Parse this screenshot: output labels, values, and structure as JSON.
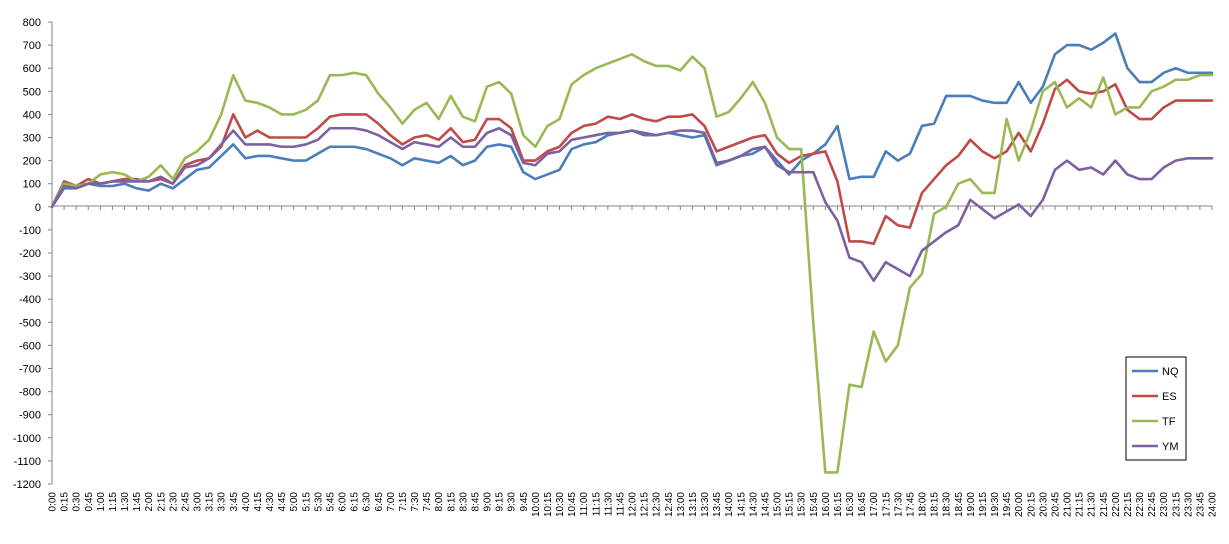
{
  "chart_data": {
    "type": "line",
    "title": "",
    "xlabel": "",
    "ylabel": "",
    "ylim": [
      -1200,
      800
    ],
    "ytick_step": 100,
    "grid": "off",
    "legend_position": "right",
    "x": [
      "0:00",
      "0:15",
      "0:30",
      "0:45",
      "1:00",
      "1:15",
      "1:30",
      "1:45",
      "2:00",
      "2:15",
      "2:30",
      "2:45",
      "3:00",
      "3:15",
      "3:30",
      "3:45",
      "4:00",
      "4:15",
      "4:30",
      "4:45",
      "5:00",
      "5:15",
      "5:30",
      "5:45",
      "6:00",
      "6:15",
      "6:30",
      "6:45",
      "7:00",
      "7:15",
      "7:30",
      "7:45",
      "8:00",
      "8:15",
      "8:30",
      "8:45",
      "9:00",
      "9:15",
      "9:30",
      "9:45",
      "10:00",
      "10:15",
      "10:30",
      "10:45",
      "11:00",
      "11:15",
      "11:30",
      "11:45",
      "12:00",
      "12:15",
      "12:30",
      "12:45",
      "13:00",
      "13:15",
      "13:30",
      "13:45",
      "14:00",
      "14:15",
      "14:30",
      "14:45",
      "15:00",
      "15:15",
      "15:30",
      "15:45",
      "16:00",
      "16:15",
      "16:30",
      "16:45",
      "17:00",
      "17:15",
      "17:30",
      "17:45",
      "18:00",
      "18:15",
      "18:30",
      "18:45",
      "19:00",
      "19:15",
      "19:30",
      "19:45",
      "20:00",
      "20:15",
      "20:30",
      "20:45",
      "21:00",
      "21:15",
      "21:30",
      "21:45",
      "22:00",
      "22:15",
      "22:30",
      "22:45",
      "23:00",
      "23:15",
      "23:30",
      "23:45",
      "24:00"
    ],
    "series": [
      {
        "name": "NQ",
        "color": "#4a7ebb",
        "values": [
          0,
          80,
          80,
          100,
          90,
          90,
          100,
          80,
          70,
          100,
          80,
          120,
          160,
          170,
          220,
          270,
          210,
          220,
          220,
          210,
          200,
          200,
          230,
          260,
          260,
          260,
          250,
          230,
          210,
          180,
          210,
          200,
          190,
          220,
          180,
          200,
          260,
          270,
          260,
          150,
          120,
          140,
          160,
          250,
          270,
          280,
          310,
          320,
          330,
          310,
          310,
          320,
          310,
          300,
          310,
          180,
          200,
          220,
          230,
          260,
          200,
          140,
          200,
          230,
          270,
          350,
          120,
          130,
          130,
          240,
          200,
          230,
          350,
          360,
          480,
          480,
          480,
          460,
          450,
          450,
          540,
          450,
          520,
          660,
          700,
          700,
          680,
          710,
          750,
          600,
          540,
          540,
          580,
          600,
          580,
          580,
          580
        ]
      },
      {
        "name": "ES",
        "color": "#be4b48",
        "values": [
          0,
          110,
          90,
          120,
          100,
          110,
          120,
          120,
          110,
          120,
          100,
          180,
          200,
          210,
          260,
          400,
          300,
          330,
          300,
          300,
          300,
          300,
          340,
          390,
          400,
          400,
          400,
          360,
          310,
          270,
          300,
          310,
          290,
          340,
          280,
          290,
          380,
          380,
          340,
          200,
          200,
          240,
          260,
          320,
          350,
          360,
          390,
          380,
          400,
          380,
          370,
          390,
          390,
          400,
          350,
          240,
          260,
          280,
          300,
          310,
          230,
          190,
          220,
          230,
          240,
          110,
          -150,
          -150,
          -160,
          -40,
          -80,
          -90,
          60,
          120,
          180,
          220,
          290,
          240,
          210,
          240,
          320,
          240,
          360,
          510,
          550,
          500,
          490,
          500,
          530,
          420,
          380,
          380,
          430,
          460,
          460,
          460,
          460
        ]
      },
      {
        "name": "TF",
        "color": "#98b954",
        "values": [
          0,
          100,
          90,
          100,
          140,
          150,
          140,
          110,
          130,
          180,
          120,
          210,
          240,
          290,
          400,
          570,
          460,
          450,
          430,
          400,
          400,
          420,
          460,
          570,
          570,
          580,
          570,
          490,
          430,
          360,
          420,
          450,
          380,
          480,
          390,
          370,
          520,
          540,
          490,
          310,
          260,
          350,
          380,
          530,
          570,
          600,
          620,
          640,
          660,
          630,
          610,
          610,
          590,
          650,
          600,
          390,
          410,
          470,
          540,
          450,
          300,
          250,
          250,
          -500,
          -1150,
          -1150,
          -770,
          -780,
          -540,
          -670,
          -600,
          -350,
          -290,
          -30,
          0,
          100,
          120,
          60,
          60,
          380,
          200,
          330,
          500,
          540,
          430,
          470,
          430,
          560,
          400,
          430,
          430,
          500,
          520,
          550,
          550,
          570,
          570
        ]
      },
      {
        "name": "YM",
        "color": "#7d60a0",
        "values": [
          0,
          90,
          80,
          100,
          100,
          110,
          110,
          110,
          110,
          130,
          100,
          170,
          180,
          210,
          270,
          330,
          270,
          270,
          270,
          260,
          260,
          270,
          290,
          340,
          340,
          340,
          330,
          310,
          280,
          250,
          280,
          270,
          260,
          300,
          260,
          260,
          320,
          340,
          310,
          190,
          180,
          230,
          240,
          290,
          300,
          310,
          320,
          320,
          330,
          320,
          310,
          320,
          330,
          330,
          320,
          190,
          200,
          220,
          250,
          260,
          180,
          150,
          150,
          150,
          20,
          -60,
          -220,
          -240,
          -320,
          -240,
          -270,
          -300,
          -190,
          -150,
          -110,
          -80,
          30,
          -10,
          -50,
          -20,
          10,
          -40,
          30,
          160,
          200,
          160,
          170,
          140,
          200,
          140,
          120,
          120,
          170,
          200,
          210,
          210,
          210
        ]
      }
    ]
  }
}
